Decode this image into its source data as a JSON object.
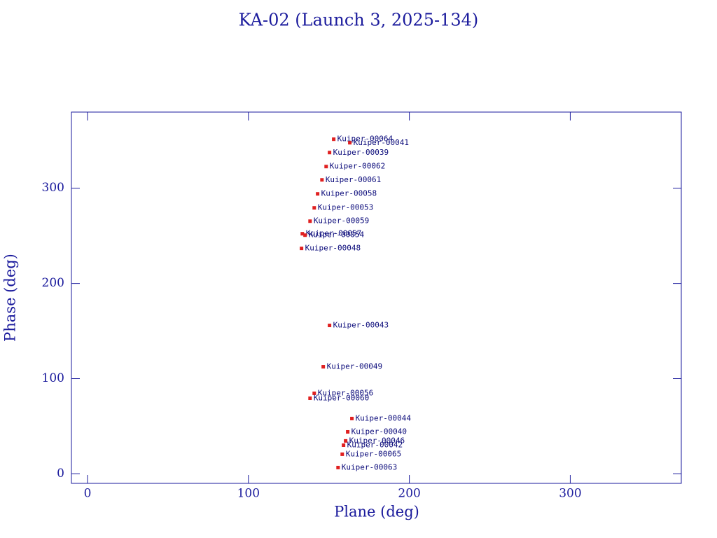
{
  "chart_data": {
    "type": "scatter",
    "title": "KA-02 (Launch 3, 2025-134)",
    "x_label": "Plane (deg)",
    "y_label": "Phase (deg)",
    "xlim": [
      -10,
      369
    ],
    "ylim": [
      -10,
      380
    ],
    "xticks": [
      0,
      100,
      200,
      300
    ],
    "yticks": [
      0,
      100,
      200,
      300
    ],
    "series": [
      {
        "color": "#e02020",
        "labels": [
          "Kuiper-00064",
          "Kuiper-00041",
          "Kuiper-00039",
          "Kuiper-00062",
          "Kuiper-00061",
          "Kuiper-00058",
          "Kuiper-00053",
          "Kuiper-00059",
          "Kuiper-00057",
          "Kuiper-00054",
          "Kuiper-00048",
          "Kuiper-00043",
          "Kuiper-00049",
          "Kuiper-00056",
          "Kuiper-00060",
          "Kuiper-00044",
          "Kuiper-00040",
          "Kuiper-00046",
          "Kuiper-00042",
          "Kuiper-00065",
          "Kuiper-00063"
        ],
        "x": [
          153.0,
          163.0,
          150.4,
          148.3,
          145.7,
          143.0,
          140.9,
          138.3,
          133.5,
          135.2,
          133.0,
          150.4,
          146.5,
          140.9,
          138.3,
          164.3,
          161.7,
          160.4,
          159.1,
          158.3,
          155.7
        ],
        "values": [
          351.5,
          347.8,
          337.5,
          322.8,
          308.8,
          294.1,
          279.4,
          265.4,
          252.2,
          250.7,
          236.8,
          155.9,
          112.5,
          84.6,
          79.4,
          58.1,
          44.1,
          34.6,
          30.1,
          20.6,
          6.6
        ]
      }
    ]
  }
}
